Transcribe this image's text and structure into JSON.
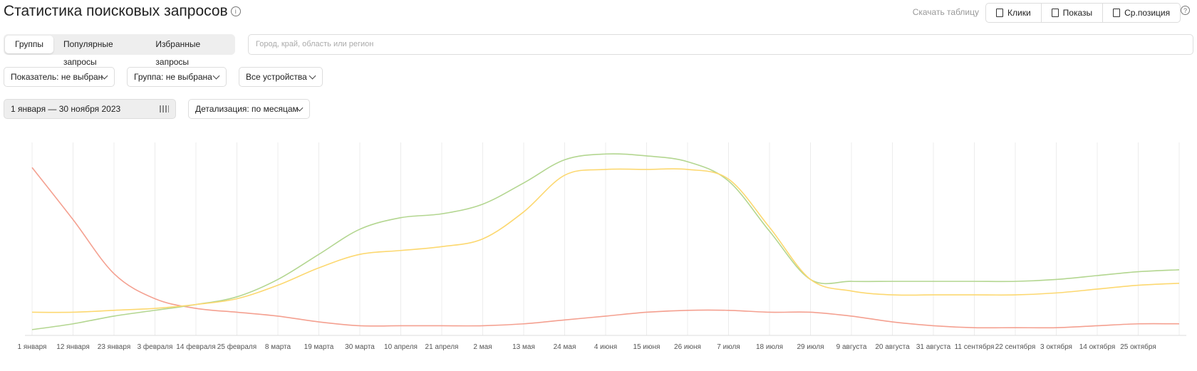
{
  "header": {
    "title": "Статистика поисковых запросов",
    "download_label": "Скачать таблицу",
    "buttons": [
      "Клики",
      "Показы",
      "Ср.позиция"
    ]
  },
  "tabs": [
    "Группы",
    "Популярные запросы",
    "Избранные запросы"
  ],
  "search_placeholder": "Город, край, область или регион",
  "filters": [
    "Показатель: не выбран",
    "Группа: не выбрана",
    "Все устройства"
  ],
  "date_range": "1 января — 30 ноября 2023",
  "detail": "Детализация: по месяцам",
  "chart_data": {
    "type": "line",
    "categories": [
      "1 января",
      "12 января",
      "23 января",
      "3 февраля",
      "14 февраля",
      "25 февраля",
      "8 марта",
      "19 марта",
      "30 марта",
      "10 апреля",
      "21 апреля",
      "2 мая",
      "13 мая",
      "24 мая",
      "4 июня",
      "15 июня",
      "26 июня",
      "7 июля",
      "18 июля",
      "29 июля",
      "9 августа",
      "20 августа",
      "31 августа",
      "11 сентября",
      "22 сентября",
      "3 октября",
      "14 октября",
      "25 октября",
      null
    ],
    "series": [
      {
        "color": "#f4a090",
        "values": [
          87,
          60,
          32,
          19,
          14,
          12,
          10,
          7,
          5,
          5,
          5,
          5,
          6,
          8,
          10,
          12,
          13,
          13,
          12,
          12,
          10,
          7,
          5,
          4,
          4,
          4,
          5,
          6,
          6
        ]
      },
      {
        "color": "#b3d690",
        "values": [
          3,
          6,
          10,
          13,
          16,
          20,
          29,
          42,
          55,
          61,
          63,
          68,
          79,
          91,
          94,
          93,
          90,
          80,
          54,
          29,
          28,
          28,
          28,
          28,
          28,
          29,
          31,
          33,
          34
        ]
      },
      {
        "color": "#fcd870",
        "values": [
          12,
          12,
          13,
          14,
          16,
          19,
          26,
          35,
          42,
          44,
          46,
          50,
          64,
          83,
          86,
          86,
          86,
          81,
          56,
          29,
          23,
          21,
          21,
          21,
          21,
          22,
          24,
          26,
          27
        ]
      }
    ],
    "ylim": [
      0,
      100
    ],
    "grid": true
  }
}
